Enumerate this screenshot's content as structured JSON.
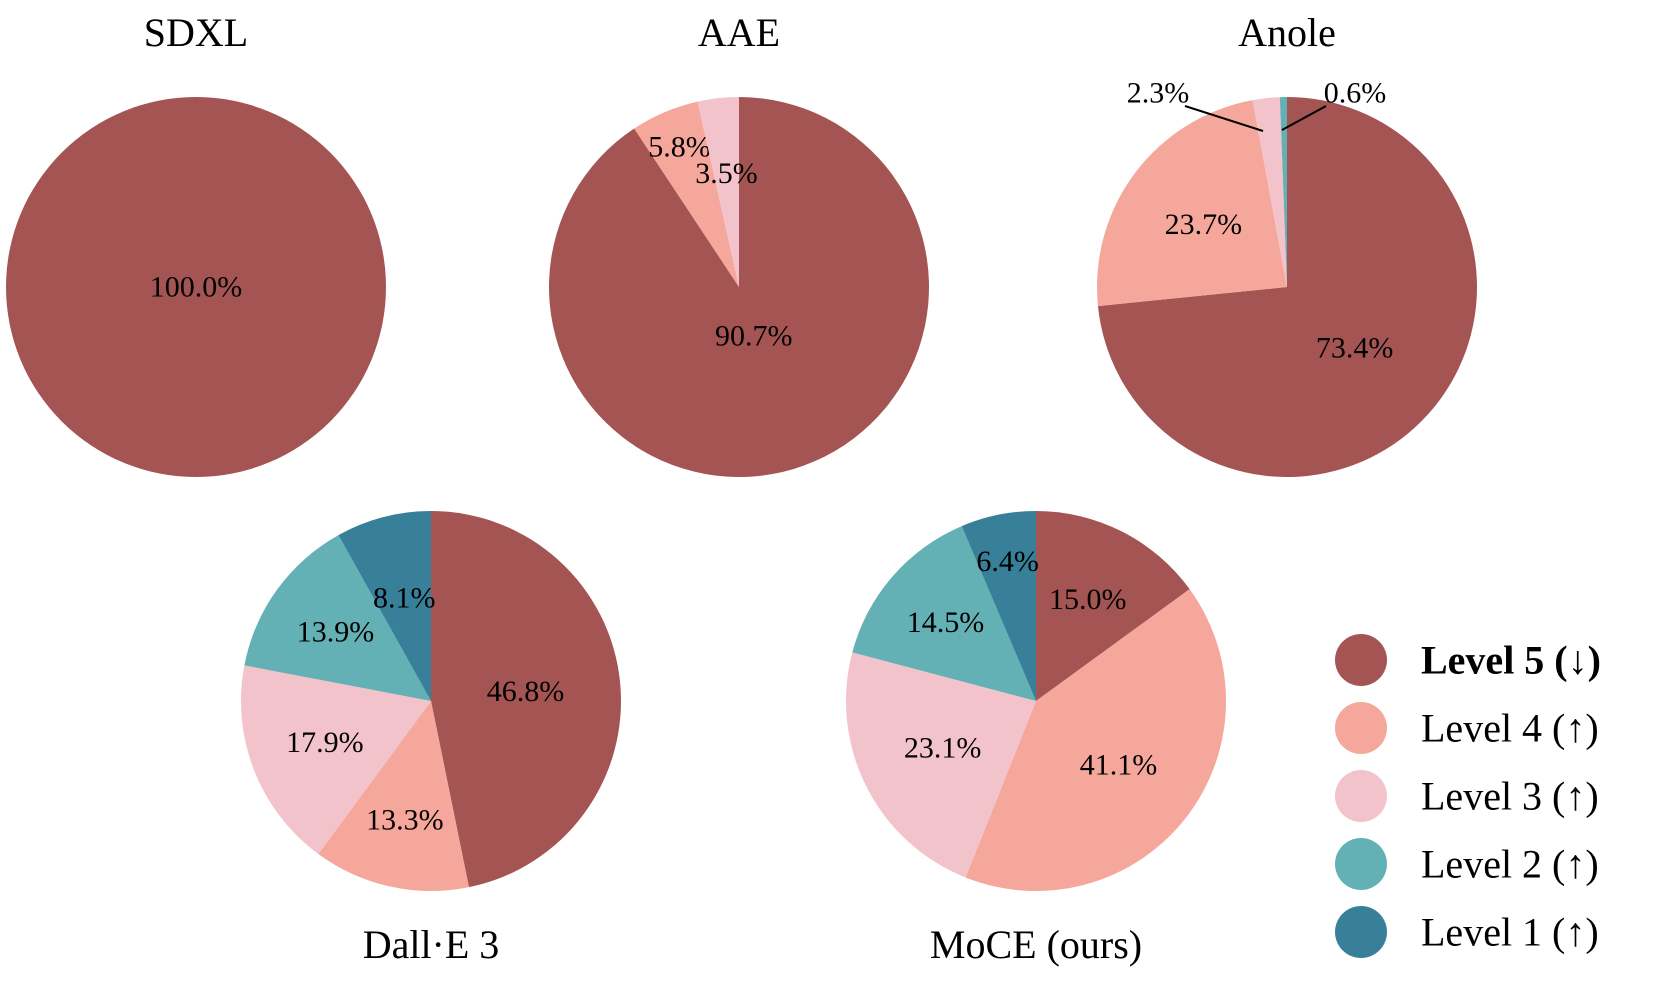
{
  "chart_data": [
    {
      "type": "pie",
      "title": "SDXL",
      "slices": [
        {
          "level": "Level 5",
          "value": 100.0,
          "label": "100.0%"
        }
      ]
    },
    {
      "type": "pie",
      "title": "AAE",
      "slices": [
        {
          "level": "Level 5",
          "value": 90.7,
          "label": "90.7%"
        },
        {
          "level": "Level 4",
          "value": 5.8,
          "label": "5.8%"
        },
        {
          "level": "Level 3",
          "value": 3.5,
          "label": "3.5%"
        }
      ]
    },
    {
      "type": "pie",
      "title": "Anole",
      "slices": [
        {
          "level": "Level 5",
          "value": 73.4,
          "label": "73.4%"
        },
        {
          "level": "Level 4",
          "value": 23.7,
          "label": "23.7%"
        },
        {
          "level": "Level 3",
          "value": 2.3,
          "label": "2.3%"
        },
        {
          "level": "Level 2",
          "value": 0.6,
          "label": "0.6%"
        }
      ]
    },
    {
      "type": "pie",
      "title": "Dall·E 3",
      "slices": [
        {
          "level": "Level 5",
          "value": 46.8,
          "label": "46.8%"
        },
        {
          "level": "Level 4",
          "value": 13.3,
          "label": "13.3%"
        },
        {
          "level": "Level 3",
          "value": 17.9,
          "label": "17.9%"
        },
        {
          "level": "Level 2",
          "value": 13.9,
          "label": "13.9%"
        },
        {
          "level": "Level 1",
          "value": 8.1,
          "label": "8.1%"
        }
      ]
    },
    {
      "type": "pie",
      "title": "MoCE (ours)",
      "slices": [
        {
          "level": "Level 5",
          "value": 15.0,
          "label": "15.0%"
        },
        {
          "level": "Level 4",
          "value": 41.1,
          "label": "41.1%"
        },
        {
          "level": "Level 3",
          "value": 23.1,
          "label": "23.1%"
        },
        {
          "level": "Level 2",
          "value": 14.5,
          "label": "14.5%"
        },
        {
          "level": "Level 1",
          "value": 6.4,
          "label": "6.4%"
        }
      ]
    }
  ],
  "legend": [
    {
      "level": "Level 5",
      "label": "Level 5 (↓)",
      "color": "#A35453",
      "highlight": true
    },
    {
      "level": "Level 4",
      "label": "Level 4 (↑)",
      "color": "#F5A79C",
      "highlight": false
    },
    {
      "level": "Level 3",
      "label": "Level 3 (↑)",
      "color": "#F2C3CB",
      "highlight": false
    },
    {
      "level": "Level 2",
      "label": "Level 2 (↑)",
      "color": "#64B1B5",
      "highlight": false
    },
    {
      "level": "Level 1",
      "label": "Level 1 (↑)",
      "color": "#387F99",
      "highlight": false
    }
  ]
}
